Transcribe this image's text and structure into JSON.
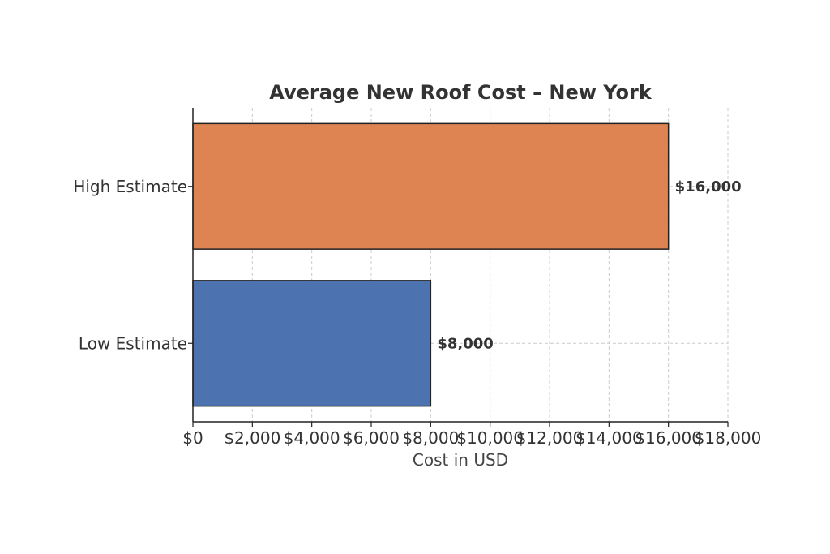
{
  "chart_data": {
    "type": "bar",
    "orientation": "horizontal",
    "title": "Average New Roof Cost – New York",
    "xlabel": "Cost in USD",
    "ylabel": "",
    "categories": [
      "Low Estimate",
      "High Estimate"
    ],
    "values": [
      8000,
      16000
    ],
    "data_labels": [
      "$8,000",
      "$16,000"
    ],
    "colors": [
      "#4c72b0",
      "#dd8452"
    ],
    "xlim": [
      0,
      18000
    ],
    "x_ticks": [
      0,
      2000,
      4000,
      6000,
      8000,
      10000,
      12000,
      14000,
      16000,
      18000
    ],
    "x_tick_labels": [
      "$0",
      "$2,000",
      "$4,000",
      "$6,000",
      "$8,000",
      "$10,000",
      "$12,000",
      "$14,000",
      "$16,000",
      "$18,000"
    ],
    "grid": true,
    "legend": "none"
  }
}
